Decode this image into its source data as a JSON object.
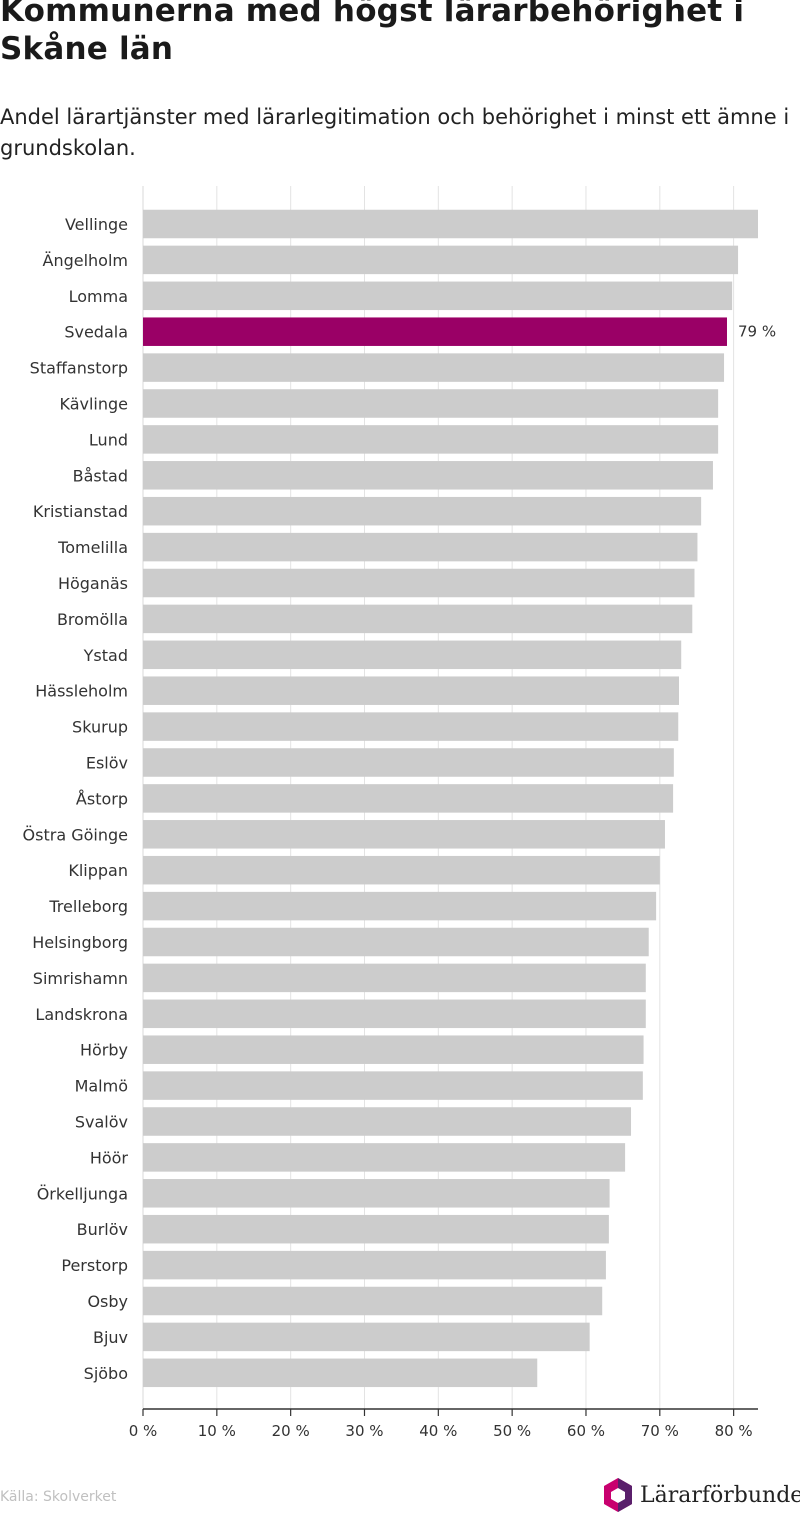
{
  "header": {
    "title": "Kommunerna med högst lärarbehörighet i Skåne län",
    "subtitle": "Andel lärartjänster med lärarlegitimation och behörighet i minst ett ämne i grundskolan."
  },
  "footer": {
    "source": "Källa: Skolverket",
    "brand": "Lärarförbundet"
  },
  "colors": {
    "bar": "#cccccc",
    "highlight": "#9a0066",
    "grid": "#e3e3e3",
    "logo_magenta": "#c8006f",
    "logo_purple": "#5a1f6b"
  },
  "chart_data": {
    "type": "bar",
    "orientation": "horizontal",
    "categories": [
      "Vellinge",
      "Ängelholm",
      "Lomma",
      "Svedala",
      "Staffanstorp",
      "Kävlinge",
      "Lund",
      "Båstad",
      "Kristianstad",
      "Tomelilla",
      "Höganäs",
      "Bromölla",
      "Ystad",
      "Hässleholm",
      "Skurup",
      "Eslöv",
      "Åstorp",
      "Östra Göinge",
      "Klippan",
      "Trelleborg",
      "Helsingborg",
      "Simrishamn",
      "Landskrona",
      "Hörby",
      "Malmö",
      "Svalöv",
      "Höör",
      "Örkelljunga",
      "Burlöv",
      "Perstorp",
      "Osby",
      "Bjuv",
      "Sjöbo"
    ],
    "values": [
      83.3,
      80.6,
      79.8,
      79.1,
      78.7,
      77.9,
      77.9,
      77.2,
      75.6,
      75.1,
      74.7,
      74.4,
      72.9,
      72.6,
      72.5,
      71.9,
      71.8,
      70.7,
      70.0,
      69.5,
      68.5,
      68.1,
      68.1,
      67.8,
      67.7,
      66.1,
      65.3,
      63.2,
      63.1,
      62.7,
      62.2,
      60.5,
      53.4
    ],
    "highlight": "Svedala",
    "highlight_label": "79 %",
    "xlim": [
      0,
      83.3
    ],
    "xticks": [
      0,
      10,
      20,
      30,
      40,
      50,
      60,
      70,
      80
    ],
    "xtick_labels": [
      "0 %",
      "10 %",
      "20 %",
      "30 %",
      "40 %",
      "50 %",
      "60 %",
      "70 %",
      "80 %"
    ],
    "grid": true,
    "xlabel": "",
    "ylabel": ""
  }
}
